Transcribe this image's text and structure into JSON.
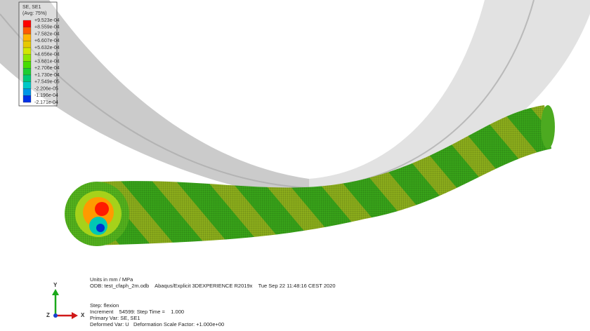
{
  "legend": {
    "title": "SE, SE1",
    "subtitle": "(Avg: 75%)",
    "labels": [
      "+9.523e-04",
      "+8.559e-04",
      "+7.582e-04",
      "+6.607e-04",
      "+5.632e-04",
      "+4.656e-04",
      "+3.681e-04",
      "+2.706e-04",
      "+1.730e-04",
      "+7.549e-05",
      "-2.206e-05",
      "-1.196e-04",
      "-2.171e-04"
    ],
    "colors": [
      "#ff0000",
      "#ff5a00",
      "#ffb400",
      "#e6c800",
      "#d2e600",
      "#8ce600",
      "#46dc00",
      "#1ecd32",
      "#00c878",
      "#00c8c8",
      "#0096e6",
      "#0032e6"
    ]
  },
  "info": {
    "units": "Units in mm / MPa",
    "odb": "ODB: test_cfaph_2m.odb    Abaqus/Explicit 3DEXPERIENCE R2019x    Tue Sep 22 11:48:16 CEST 2020",
    "step": "Step: flexion",
    "increment": "Increment    54599: Step Time =    1.000",
    "primary": "Primary Var: SE, SE1",
    "deformed": "Deformed Var: U   Deformation Scale Factor: +1.000e+00"
  },
  "triad": {
    "y": "Y",
    "x": "X",
    "z": "Z"
  }
}
